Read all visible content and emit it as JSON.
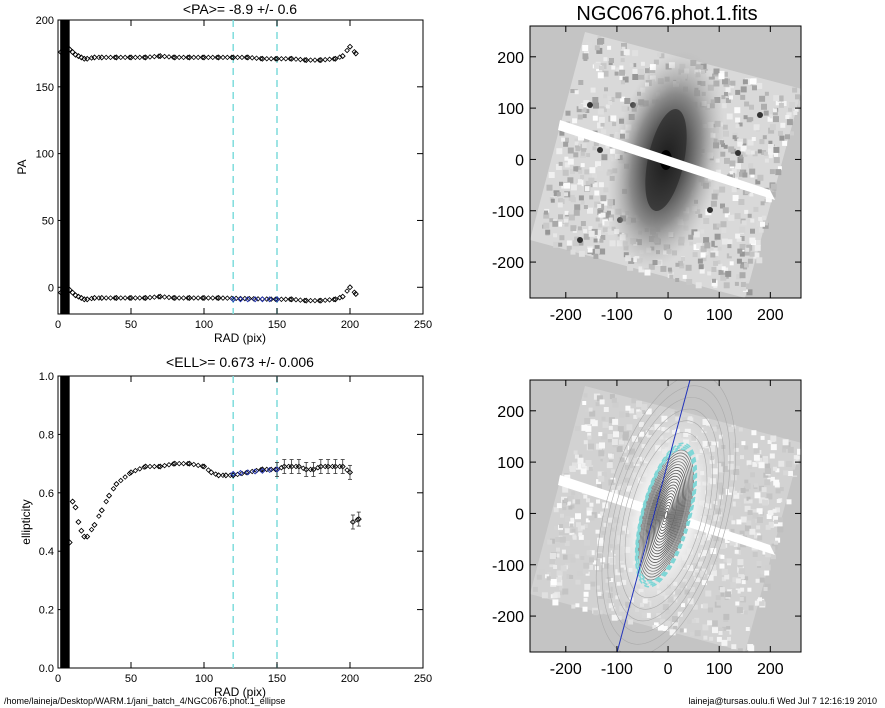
{
  "chart_data": [
    {
      "type": "scatter",
      "title": "<PA>=  -8.9 +/-   0.6",
      "xlabel": "RAD (pix)",
      "ylabel": "PA",
      "xlim": [
        0,
        250
      ],
      "ylim": [
        -20,
        200
      ],
      "xticks": [
        "0",
        "50",
        "100",
        "150",
        "200",
        "250"
      ],
      "yticks": [
        "0",
        "50",
        "100",
        "150",
        "200"
      ],
      "vlines": [
        120,
        150
      ],
      "vline_color": "#7fdcdc",
      "series": [
        {
          "role": "upper",
          "color": "#000000",
          "x": [
            2,
            4,
            6,
            8,
            10,
            12,
            14,
            16,
            18,
            20,
            25,
            30,
            40,
            50,
            60,
            70,
            80,
            90,
            100,
            110,
            120,
            130,
            140,
            150,
            160,
            170,
            180,
            190,
            195,
            200,
            204
          ],
          "y": [
            176,
            175,
            177,
            178,
            176,
            174,
            173,
            172,
            171,
            171,
            172,
            172,
            172,
            172,
            172,
            173,
            172,
            172,
            172,
            172,
            172,
            172,
            171,
            171,
            171,
            170,
            170,
            171,
            173,
            180,
            175
          ]
        },
        {
          "role": "lower",
          "color": "#000000",
          "x": [
            2,
            4,
            6,
            8,
            10,
            12,
            14,
            16,
            18,
            20,
            25,
            30,
            40,
            50,
            60,
            70,
            80,
            90,
            100,
            110,
            150,
            160,
            170,
            180,
            190,
            195,
            200,
            204
          ],
          "y": [
            -4,
            -5,
            -3,
            -2,
            -4,
            -6,
            -7,
            -8,
            -9,
            -9,
            -8,
            -8,
            -8,
            -8,
            -8,
            -7,
            -8,
            -8,
            -8,
            -8,
            -9,
            -9,
            -10,
            -10,
            -9,
            -7,
            0,
            -5
          ]
        },
        {
          "role": "fit",
          "color": "#1f2fb0",
          "x": [
            120,
            125,
            130,
            135,
            140,
            145,
            150
          ],
          "y": [
            -9,
            -9,
            -9,
            -9,
            -9,
            -9,
            -9
          ]
        }
      ]
    },
    {
      "type": "scatter",
      "title": "<ELL>= 0.673 +/-  0.006",
      "xlabel": "RAD (pix)",
      "ylabel": "ellipticity",
      "xlim": [
        0,
        250
      ],
      "ylim": [
        0.0,
        1.0
      ],
      "xticks": [
        "0",
        "50",
        "100",
        "150",
        "200",
        "250"
      ],
      "yticks": [
        "0.0",
        "0.2",
        "0.4",
        "0.6",
        "0.8",
        "1.0"
      ],
      "vlines": [
        120,
        150
      ],
      "vline_color": "#7fdcdc",
      "series": [
        {
          "role": "data",
          "color": "#000000",
          "x": [
            8,
            10,
            12,
            14,
            16,
            18,
            20,
            25,
            30,
            35,
            40,
            50,
            60,
            70,
            80,
            90,
            100,
            105,
            110,
            115,
            120,
            130,
            140,
            150,
            155,
            160,
            165,
            170,
            175,
            180,
            185,
            190,
            195,
            200,
            202,
            206
          ],
          "y": [
            0.43,
            0.57,
            0.55,
            0.5,
            0.47,
            0.45,
            0.45,
            0.49,
            0.54,
            0.59,
            0.63,
            0.67,
            0.69,
            0.69,
            0.7,
            0.7,
            0.69,
            0.67,
            0.66,
            0.66,
            0.66,
            0.67,
            0.68,
            0.68,
            0.69,
            0.69,
            0.69,
            0.68,
            0.68,
            0.69,
            0.69,
            0.69,
            0.69,
            0.67,
            0.5,
            0.51
          ]
        },
        {
          "role": "fit",
          "color": "#1f2fb0",
          "x": [
            120,
            125,
            130,
            135,
            140,
            145,
            150
          ],
          "y": [
            0.665,
            0.668,
            0.67,
            0.673,
            0.675,
            0.678,
            0.68
          ]
        }
      ]
    },
    {
      "type": "heatmap",
      "title": "NGC0676.phot.1.fits",
      "xlim": [
        -270,
        260
      ],
      "ylim": [
        -270,
        260
      ],
      "xticks": [
        "-200",
        "-100",
        "0",
        "100",
        "200"
      ],
      "yticks": [
        "-200",
        "-100",
        "0",
        "100",
        "200"
      ],
      "colormap": "grayscale"
    },
    {
      "type": "heatmap",
      "title": "",
      "xlim": [
        -270,
        260
      ],
      "ylim": [
        -270,
        260
      ],
      "xticks": [
        "-200",
        "-100",
        "0",
        "100",
        "200"
      ],
      "yticks": [
        "-200",
        "-100",
        "0",
        "100",
        "200"
      ],
      "colormap": "grayscale",
      "overlay": "isophote ellipses with major-axis line"
    }
  ],
  "footer": {
    "path": "/home/laineja/Desktop/WARM.1/jani_batch_4/NGC0676.phot.1_ellipse",
    "user_date": "laineja@tursas.oulu.fi  Wed Jul  7 12:16:19 2010"
  }
}
